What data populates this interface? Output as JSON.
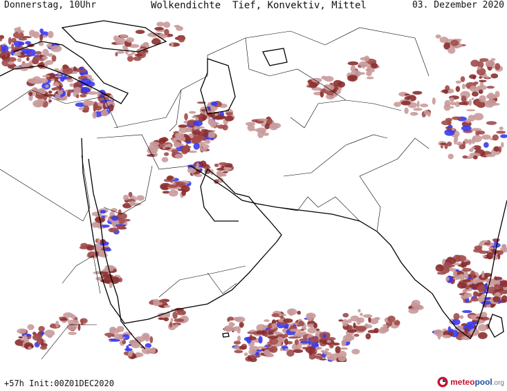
{
  "header": {
    "left": "Donnerstag, 10Uhr",
    "center": "Wolkendichte  Tief, Konvektiv, Mittel",
    "right": "03. Dezember 2020"
  },
  "footer": {
    "run": "+57h Init:00Z01DEC2020",
    "logo_part1": "meteo",
    "logo_part2": "pool",
    "logo_part3": ".org"
  },
  "colors": {
    "cloud_light": "#c99a9a",
    "cloud_medium": "#a04a4a",
    "cloud_dense": "#8b2e2e",
    "cloud_max": "#3a3af0",
    "border": "#000000"
  },
  "icons": {
    "logo": "meteopool-logo-icon"
  }
}
